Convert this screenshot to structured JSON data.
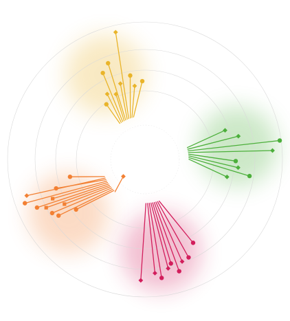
{
  "chart_data": {
    "type": "radial-lollipop",
    "title": "",
    "xlabel": "",
    "ylabel": "",
    "grid": true,
    "legend": "none",
    "r_max": 100,
    "grid_values": [
      50,
      65,
      80,
      100
    ],
    "inner_radius_value": 25,
    "groups": [
      {
        "color": "#f28033",
        "anchor_angle_deg": 235,
        "items": [
          {
            "marker": "diamond",
            "angle": 232,
            "value": 20
          },
          {
            "marker": "circle",
            "angle": 234,
            "value": 62
          },
          {
            "marker": "circle",
            "angle": 237,
            "value": 75
          },
          {
            "marker": "circle",
            "angle": 240,
            "value": 78
          },
          {
            "marker": "square",
            "angle": 241,
            "value": 67
          },
          {
            "marker": "square",
            "angle": 244,
            "value": 80
          },
          {
            "marker": "circle",
            "angle": 246,
            "value": 86
          },
          {
            "marker": "square",
            "angle": 247,
            "value": 73
          },
          {
            "marker": "circle",
            "angle": 250,
            "value": 93
          },
          {
            "marker": "circle",
            "angle": 252,
            "value": 68
          },
          {
            "marker": "diamond",
            "angle": 253,
            "value": 90
          },
          {
            "marker": "circle",
            "angle": 257,
            "value": 56
          }
        ]
      },
      {
        "color": "#e9b42a",
        "anchor_angle_deg": 335,
        "items": [
          {
            "marker": "circle",
            "angle": 325,
            "value": 49
          },
          {
            "marker": "diamond",
            "angle": 330,
            "value": 55
          },
          {
            "marker": "circle",
            "angle": 334,
            "value": 70
          },
          {
            "marker": "diamond",
            "angle": 336,
            "value": 52
          },
          {
            "marker": "circle",
            "angle": 339,
            "value": 75
          },
          {
            "marker": "diamond",
            "angle": 342,
            "value": 58
          },
          {
            "marker": "diamond",
            "angle": 347,
            "value": 95
          },
          {
            "marker": "circle",
            "angle": 350,
            "value": 62
          },
          {
            "marker": "diamond",
            "angle": 352,
            "value": 54
          },
          {
            "marker": "circle",
            "angle": 358,
            "value": 57
          }
        ]
      },
      {
        "color": "#4caf3b",
        "anchor_angle_deg": 82,
        "items": [
          {
            "marker": "diamond",
            "angle": 70,
            "value": 62
          },
          {
            "marker": "diamond",
            "angle": 76,
            "value": 70
          },
          {
            "marker": "circle",
            "angle": 82,
            "value": 99
          },
          {
            "marker": "diamond",
            "angle": 86,
            "value": 93
          },
          {
            "marker": "circle",
            "angle": 91,
            "value": 66
          },
          {
            "marker": "diamond",
            "angle": 95,
            "value": 68
          },
          {
            "marker": "circle",
            "angle": 99,
            "value": 77
          },
          {
            "marker": "diamond",
            "angle": 102,
            "value": 61
          }
        ]
      },
      {
        "color": "#d21e5c",
        "anchor_angle_deg": 170,
        "items": [
          {
            "marker": "circle",
            "angle": 150,
            "value": 70
          },
          {
            "marker": "circle",
            "angle": 156,
            "value": 78
          },
          {
            "marker": "diamond",
            "angle": 160,
            "value": 79
          },
          {
            "marker": "circle",
            "angle": 163,
            "value": 85
          },
          {
            "marker": "circle",
            "angle": 166,
            "value": 78
          },
          {
            "marker": "diamond",
            "angle": 168,
            "value": 81
          },
          {
            "marker": "circle",
            "angle": 172,
            "value": 87
          },
          {
            "marker": "diamond",
            "angle": 175,
            "value": 83
          },
          {
            "marker": "diamond",
            "angle": 182,
            "value": 88
          }
        ]
      }
    ]
  }
}
